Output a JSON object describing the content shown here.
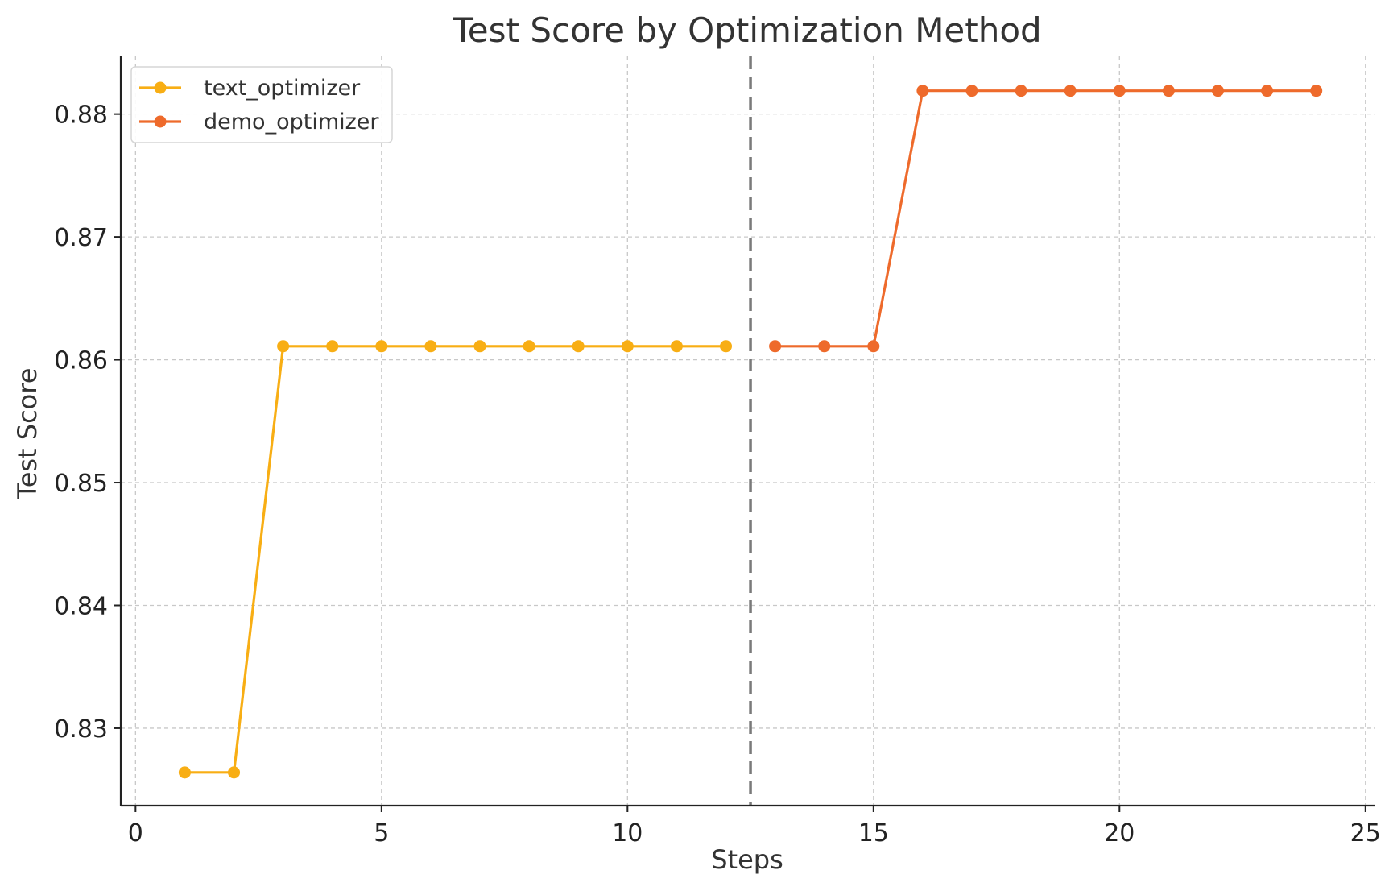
{
  "chart_data": {
    "type": "line",
    "title": "Test Score by Optimization Method",
    "xlabel": "Steps",
    "ylabel": "Test Score",
    "xlim": [
      -0.3,
      25.2
    ],
    "ylim": [
      0.8237,
      0.8847
    ],
    "xticks": [
      0,
      5,
      10,
      15,
      20,
      25
    ],
    "yticks": [
      0.83,
      0.84,
      0.85,
      0.86,
      0.87,
      0.88
    ],
    "ytick_labels": [
      "0.83",
      "0.84",
      "0.85",
      "0.86",
      "0.87",
      "0.88"
    ],
    "grid": true,
    "legend_position": "top-left",
    "separator_x": 12.5,
    "series": [
      {
        "name": "text_optimizer",
        "color": "#F8AE14",
        "x": [
          1,
          2,
          3,
          4,
          5,
          6,
          7,
          8,
          9,
          10,
          11,
          12
        ],
        "y": [
          0.8264,
          0.8264,
          0.8611,
          0.8611,
          0.8611,
          0.8611,
          0.8611,
          0.8611,
          0.8611,
          0.8611,
          0.8611,
          0.8611
        ]
      },
      {
        "name": "demo_optimizer",
        "color": "#EE6A2B",
        "x": [
          13,
          14,
          15,
          16,
          17,
          18,
          19,
          20,
          21,
          22,
          23,
          24
        ],
        "y": [
          0.8611,
          0.8611,
          0.8611,
          0.8819,
          0.8819,
          0.8819,
          0.8819,
          0.8819,
          0.8819,
          0.8819,
          0.8819,
          0.8819
        ]
      }
    ]
  }
}
